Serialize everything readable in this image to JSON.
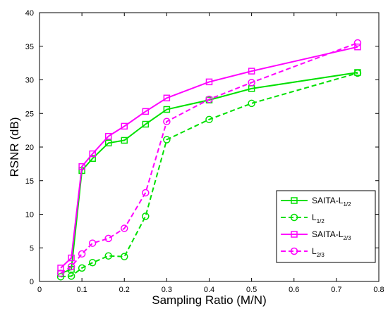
{
  "chart_data": {
    "type": "line",
    "title": "",
    "xlabel": "Sampling Ratio (M/N)",
    "ylabel": "RSNR (dB)",
    "xlim": [
      0,
      0.8
    ],
    "ylim": [
      0,
      40
    ],
    "xticks": [
      0,
      0.1,
      0.2,
      0.3,
      0.4,
      0.5,
      0.6,
      0.7,
      0.8
    ],
    "yticks": [
      0,
      5,
      10,
      15,
      20,
      25,
      30,
      35,
      40
    ],
    "xtick_labels": [
      "0",
      "0.1",
      "0.2",
      "0.3",
      "0.4",
      "0.5",
      "0.6",
      "0.7",
      "0.8"
    ],
    "ytick_labels": [
      "0",
      "5",
      "10",
      "15",
      "20",
      "25",
      "30",
      "35",
      "40"
    ],
    "grid": false,
    "legend_position": "bottom-right",
    "x": [
      0.05,
      0.075,
      0.1,
      0.125,
      0.1625,
      0.2,
      0.25,
      0.3,
      0.4,
      0.5,
      0.75
    ],
    "series": [
      {
        "name": "SAITA-L",
        "subscript": "1/2",
        "color": "#00e000",
        "dash": "solid",
        "marker": "square",
        "values": [
          1.2,
          1.8,
          16.5,
          18.3,
          20.6,
          21.0,
          23.4,
          25.6,
          27.0,
          28.7,
          31.1
        ]
      },
      {
        "name": "L",
        "subscript": "1/2",
        "color": "#00e000",
        "dash": "dashed",
        "marker": "circle",
        "values": [
          0.7,
          0.8,
          2.0,
          2.8,
          3.8,
          3.7,
          9.7,
          21.1,
          24.1,
          26.5,
          31.0
        ]
      },
      {
        "name": "SAITA-L",
        "subscript": "2/3",
        "color": "#ff00ff",
        "dash": "solid",
        "marker": "square",
        "values": [
          2.0,
          3.5,
          17.1,
          19.0,
          21.6,
          23.1,
          25.3,
          27.3,
          29.7,
          31.3,
          34.9
        ]
      },
      {
        "name": "L",
        "subscript": "2/3",
        "color": "#ff00ff",
        "dash": "dashed",
        "marker": "circle",
        "values": [
          1.2,
          2.2,
          4.1,
          5.7,
          6.4,
          7.9,
          13.2,
          23.8,
          27.1,
          29.6,
          35.5
        ]
      }
    ]
  }
}
